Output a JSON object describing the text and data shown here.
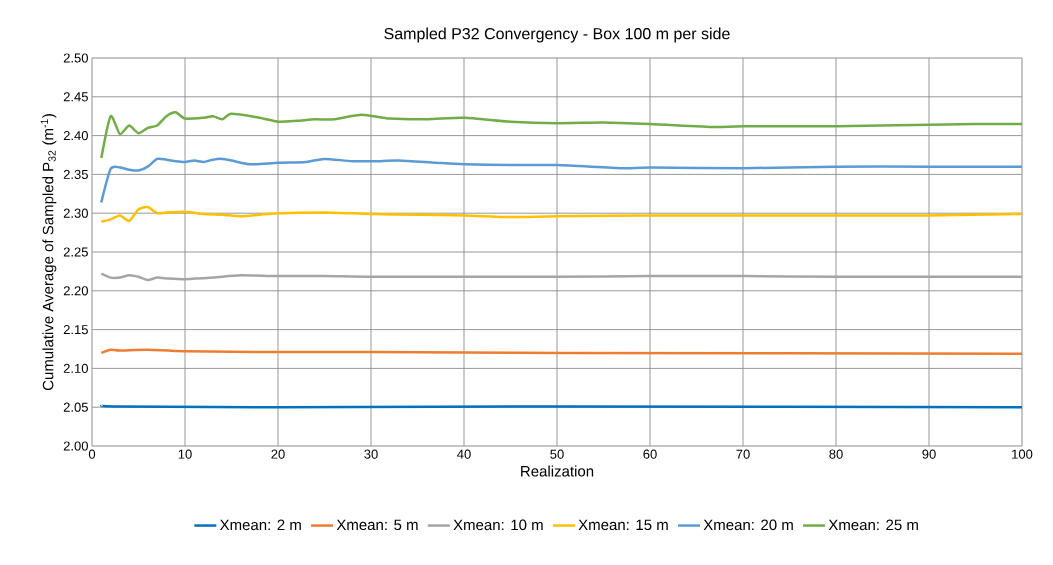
{
  "chart_data": {
    "type": "line",
    "title": "Sampled P32 Convergency - Box 100 m per side",
    "xlabel": "Realization",
    "ylabel": "Cumulative Average of Sampled  P$_{32}$ (m$^{-1}$)",
    "xlim": [
      0,
      100
    ],
    "xticks": [
      0,
      10,
      20,
      30,
      40,
      50,
      60,
      70,
      80,
      90,
      100
    ],
    "ylim": [
      2.0,
      2.5
    ],
    "yticks": [
      {
        "value": 2.0,
        "label": "2.00"
      },
      {
        "value": 2.05,
        "label": "2.05"
      },
      {
        "value": 2.1,
        "label": "2.10"
      },
      {
        "value": 2.15,
        "label": "2.15"
      },
      {
        "value": 2.2,
        "label": "2.20"
      },
      {
        "value": 2.25,
        "label": "2.25"
      },
      {
        "value": 2.3,
        "label": "2.30"
      },
      {
        "value": 2.35,
        "label": "2.35"
      },
      {
        "value": 2.4,
        "label": "2.40"
      },
      {
        "value": 2.45,
        "label": "2.45"
      },
      {
        "value": 2.5,
        "label": "2.50"
      }
    ],
    "grid": true,
    "legend": "bottom",
    "marker": "none",
    "line_style": "solid",
    "series": [
      {
        "name": "Xmean: 2 m",
        "color": "#0070c0",
        "x": [
          1,
          3,
          20,
          50,
          100
        ],
        "values": [
          2.052,
          2.051,
          2.05,
          2.051,
          2.05
        ]
      },
      {
        "name": "Xmean: 5 m",
        "color": "#ed7d31",
        "x": [
          1,
          2,
          3,
          6,
          10,
          20,
          30,
          50,
          100
        ],
        "values": [
          2.12,
          2.124,
          2.123,
          2.124,
          2.122,
          2.121,
          2.121,
          2.12,
          2.119
        ]
      },
      {
        "name": "Xmean: 10 m",
        "color": "#a5a5a5",
        "x": [
          1,
          2,
          3,
          4,
          5,
          6,
          7,
          8,
          10,
          13,
          16,
          20,
          25,
          30,
          40,
          50,
          60,
          70,
          80,
          90,
          100
        ],
        "values": [
          2.222,
          2.217,
          2.217,
          2.22,
          2.218,
          2.214,
          2.217,
          2.216,
          2.215,
          2.217,
          2.22,
          2.219,
          2.219,
          2.218,
          2.218,
          2.218,
          2.219,
          2.219,
          2.218,
          2.218,
          2.218
        ]
      },
      {
        "name": "Xmean: 15 m",
        "color": "#ffc000",
        "x": [
          1,
          2,
          3,
          4,
          5,
          6,
          7,
          8,
          10,
          12,
          14,
          16,
          18,
          20,
          25,
          30,
          35,
          40,
          45,
          50,
          60,
          70,
          80,
          90,
          100
        ],
        "values": [
          2.289,
          2.292,
          2.297,
          2.29,
          2.305,
          2.308,
          2.3,
          2.301,
          2.302,
          2.299,
          2.298,
          2.296,
          2.298,
          2.3,
          2.301,
          2.299,
          2.298,
          2.297,
          2.295,
          2.296,
          2.297,
          2.297,
          2.297,
          2.297,
          2.299
        ]
      },
      {
        "name": "Xmean: 20 m",
        "color": "#5b9bd5",
        "x": [
          1,
          2,
          3,
          4,
          5,
          6,
          7,
          8,
          9,
          10,
          11,
          12,
          13,
          14,
          15,
          17,
          20,
          23,
          25,
          28,
          31,
          33,
          37,
          40,
          45,
          50,
          57,
          60,
          70,
          80,
          90,
          100
        ],
        "values": [
          2.314,
          2.357,
          2.359,
          2.356,
          2.355,
          2.36,
          2.37,
          2.369,
          2.367,
          2.366,
          2.368,
          2.366,
          2.369,
          2.37,
          2.368,
          2.363,
          2.365,
          2.366,
          2.37,
          2.367,
          2.367,
          2.368,
          2.365,
          2.363,
          2.362,
          2.362,
          2.358,
          2.359,
          2.358,
          2.36,
          2.36,
          2.36
        ]
      },
      {
        "name": "Xmean: 25 m",
        "color": "#70ad47",
        "x": [
          1,
          2,
          3,
          4,
          5,
          6,
          7,
          8,
          9,
          10,
          12,
          13,
          14,
          15,
          18,
          20,
          22,
          24,
          26,
          29,
          32,
          36,
          40,
          45,
          50,
          55,
          60,
          67,
          70,
          80,
          90,
          95,
          100
        ],
        "values": [
          2.371,
          2.425,
          2.402,
          2.413,
          2.403,
          2.41,
          2.413,
          2.425,
          2.43,
          2.422,
          2.423,
          2.425,
          2.421,
          2.428,
          2.423,
          2.418,
          2.419,
          2.421,
          2.421,
          2.427,
          2.422,
          2.421,
          2.423,
          2.418,
          2.416,
          2.417,
          2.415,
          2.411,
          2.412,
          2.412,
          2.414,
          2.415,
          2.415
        ]
      }
    ]
  }
}
